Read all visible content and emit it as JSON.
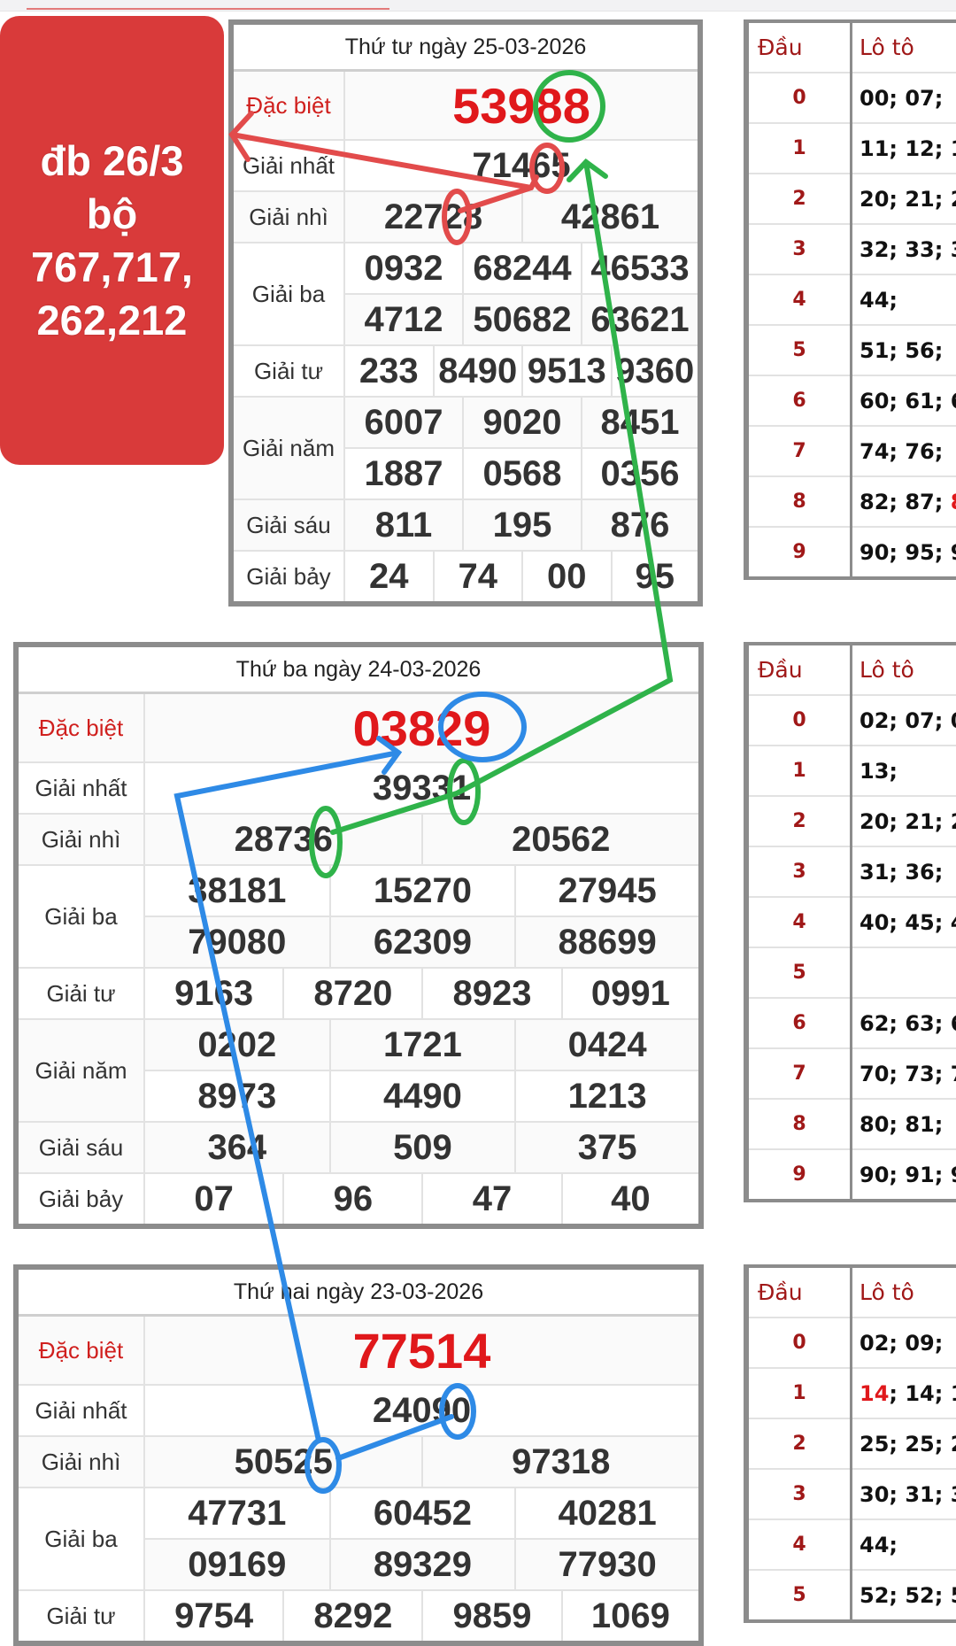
{
  "annotation_colors": {
    "red": "#e24b4b",
    "green": "#2fb34a",
    "blue": "#2e8ae6"
  },
  "overlay": {
    "lines": [
      "đb 26/3",
      "bộ",
      "767,717,",
      "262,212"
    ],
    "color": "#d93a3a"
  },
  "results": [
    {
      "title": "Thứ tư ngày 25-03-2026",
      "rows": [
        {
          "label": "Đặc biệt",
          "values": [
            "53988"
          ],
          "special": true
        },
        {
          "label": "Giải nhất",
          "values": [
            "71465"
          ]
        },
        {
          "label": "Giải nhì",
          "values": [
            "22728",
            "42861"
          ]
        },
        {
          "label": "Giải ba",
          "values": [
            "0932",
            "68244",
            "46533"
          ],
          "group_start": 2
        },
        {
          "label": "",
          "values": [
            "4712",
            "50682",
            "63621"
          ],
          "group_cont": true
        },
        {
          "label": "Giải tư",
          "values": [
            "233",
            "8490",
            "9513",
            "9360"
          ]
        },
        {
          "label": "Giải năm",
          "values": [
            "6007",
            "9020",
            "8451"
          ],
          "group_start": 2
        },
        {
          "label": "",
          "values": [
            "1887",
            "0568",
            "0356"
          ],
          "group_cont": true
        },
        {
          "label": "Giải sáu",
          "values": [
            "811",
            "195",
            "876"
          ]
        },
        {
          "label": "Giải bảy",
          "values": [
            "24",
            "74",
            "00",
            "95"
          ]
        }
      ]
    },
    {
      "title": "Thứ ba ngày 24-03-2026",
      "rows": [
        {
          "label": "Đặc biệt",
          "values": [
            "03829"
          ],
          "special": true
        },
        {
          "label": "Giải nhất",
          "values": [
            "39331"
          ]
        },
        {
          "label": "Giải nhì",
          "values": [
            "28736",
            "20562"
          ]
        },
        {
          "label": "Giải ba",
          "values": [
            "38181",
            "15270",
            "27945"
          ],
          "group_start": 2
        },
        {
          "label": "",
          "values": [
            "79080",
            "62309",
            "88699"
          ],
          "group_cont": true
        },
        {
          "label": "Giải tư",
          "values": [
            "9163",
            "8720",
            "8923",
            "0991"
          ]
        },
        {
          "label": "Giải năm",
          "values": [
            "0202",
            "1721",
            "0424"
          ],
          "group_start": 2
        },
        {
          "label": "",
          "values": [
            "8973",
            "4490",
            "1213"
          ],
          "group_cont": true
        },
        {
          "label": "Giải sáu",
          "values": [
            "364",
            "509",
            "375"
          ]
        },
        {
          "label": "Giải bảy",
          "values": [
            "07",
            "96",
            "47",
            "40"
          ]
        }
      ]
    },
    {
      "title": "Thứ hai ngày 23-03-2026",
      "rows": [
        {
          "label": "Đặc biệt",
          "values": [
            "77514"
          ],
          "special": true
        },
        {
          "label": "Giải nhất",
          "values": [
            "24090"
          ]
        },
        {
          "label": "Giải nhì",
          "values": [
            "50525",
            "97318"
          ]
        },
        {
          "label": "Giải ba",
          "values": [
            "47731",
            "60452",
            "40281"
          ],
          "group_start": 2
        },
        {
          "label": "",
          "values": [
            "09169",
            "89329",
            "77930"
          ],
          "group_cont": true
        },
        {
          "label": "Giải tư",
          "values": [
            "9754",
            "8292",
            "9859",
            "1069"
          ]
        }
      ]
    }
  ],
  "loto_header": {
    "dau": "Đầu",
    "loto": "Lô tô"
  },
  "loto": [
    [
      [
        {
          "t": "00; 07;"
        }
      ],
      [
        {
          "t": "11; 12; 1"
        }
      ],
      [
        {
          "t": "20; 21; 2"
        }
      ],
      [
        {
          "t": "32; 33; 3"
        }
      ],
      [
        {
          "t": "44;"
        }
      ],
      [
        {
          "t": "51; 56;"
        }
      ],
      [
        {
          "t": "60; 61; 6"
        }
      ],
      [
        {
          "t": "74; 76;"
        }
      ],
      [
        {
          "t": "82; 87; "
        },
        {
          "t": "8",
          "hl": true
        }
      ],
      [
        {
          "t": "90; 95; 9"
        }
      ]
    ],
    [
      [
        {
          "t": "02; 07; 0"
        }
      ],
      [
        {
          "t": "13;"
        }
      ],
      [
        {
          "t": "20; 21; 2"
        }
      ],
      [
        {
          "t": "31; 36;"
        }
      ],
      [
        {
          "t": "40; 45; 4"
        }
      ],
      [],
      [
        {
          "t": "62; 63; 6"
        }
      ],
      [
        {
          "t": "70; 73; 7"
        }
      ],
      [
        {
          "t": "80; 81;"
        }
      ],
      [
        {
          "t": "90; 91; 9"
        }
      ]
    ],
    [
      [
        {
          "t": "02; 09;"
        }
      ],
      [
        {
          "t": "14",
          "hl": true
        },
        {
          "t": "; 14; 1"
        }
      ],
      [
        {
          "t": "25; 25; 2"
        }
      ],
      [
        {
          "t": "30; 31; 3"
        }
      ],
      [
        {
          "t": "44;"
        }
      ],
      [
        {
          "t": "52; 52; 5"
        }
      ]
    ]
  ]
}
